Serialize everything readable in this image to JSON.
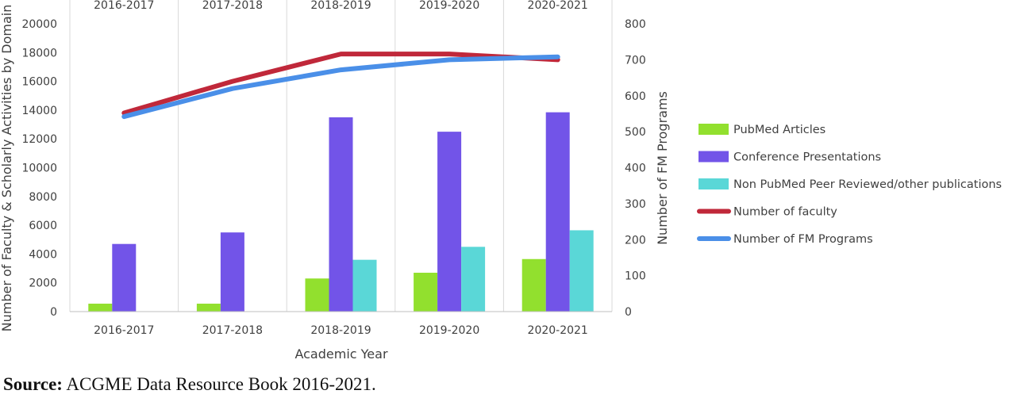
{
  "chart_data": {
    "type": "bar",
    "categories": [
      "2016-2017",
      "2017-2018",
      "2018-2019",
      "2019-2020",
      "2020-2021"
    ],
    "xlabel": "Academic Year",
    "ylabel": "Number of Faculty & Scholarly Activities by Domain",
    "y2label": "Number of FM Programs",
    "ylim": [
      0,
      20000
    ],
    "yticks": [
      0,
      2000,
      4000,
      6000,
      8000,
      10000,
      12000,
      14000,
      16000,
      18000,
      20000
    ],
    "y2lim": [
      0,
      800
    ],
    "y2ticks": [
      0,
      100,
      200,
      300,
      400,
      500,
      600,
      700,
      800
    ],
    "grid": "vertical category separators",
    "legend_position": "right",
    "series": [
      {
        "name": "PubMed Articles",
        "kind": "bar",
        "axis": "left",
        "color": "#92e02e",
        "values": [
          550,
          550,
          2300,
          2700,
          3650
        ]
      },
      {
        "name": "Conference Presentations",
        "kind": "bar",
        "axis": "left",
        "color": "#7254e8",
        "values": [
          4700,
          5500,
          13500,
          12500,
          13850
        ]
      },
      {
        "name": "Non PubMed Peer Reviewed/other publications",
        "kind": "bar",
        "axis": "left",
        "color": "#5ad7d7",
        "values": [
          0,
          0,
          3600,
          4500,
          5650
        ]
      },
      {
        "name": "Number of faculty",
        "kind": "line",
        "axis": "left",
        "color": "#c0283a",
        "values": [
          13800,
          16000,
          17900,
          17900,
          17500
        ]
      },
      {
        "name": "Number of FM Programs",
        "kind": "line",
        "axis": "right",
        "color": "#4a8fe8",
        "values": [
          542,
          620,
          672,
          700,
          708
        ]
      }
    ]
  },
  "source": {
    "label": "Source:",
    "text": " ACGME Data Resource Book 2016-2021."
  }
}
